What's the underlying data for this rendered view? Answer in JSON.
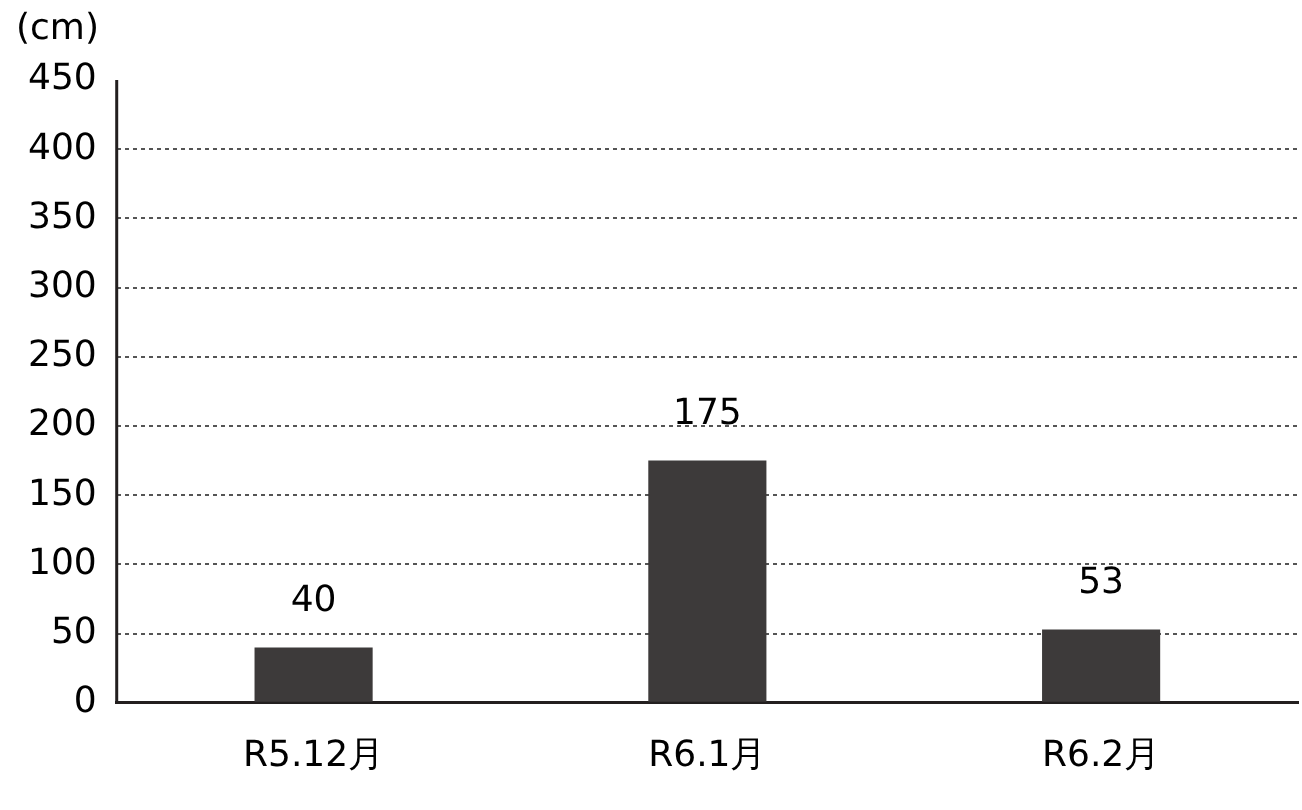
{
  "chart_data": {
    "type": "bar",
    "ylabel": "(cm)",
    "categories": [
      "R5.12月",
      "R6.1月",
      "R6.2月"
    ],
    "values": [
      40,
      175,
      53
    ],
    "color": "#3d3a3a",
    "ylim": [
      0,
      450
    ],
    "yticks": [
      0,
      50,
      100,
      150,
      200,
      250,
      300,
      350,
      400,
      450
    ],
    "grid": "y",
    "data_labels": true,
    "legend": false
  }
}
